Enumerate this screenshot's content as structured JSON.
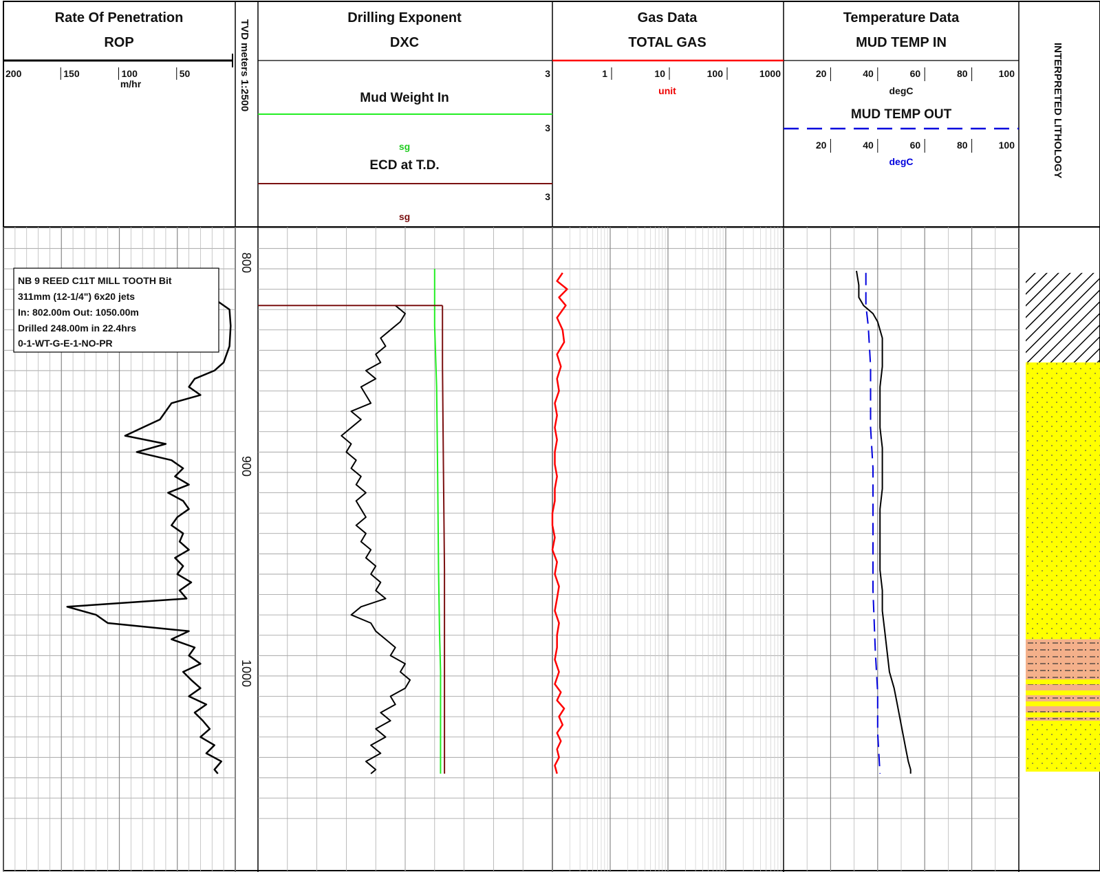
{
  "header": {
    "rop": {
      "title": "Rate Of Penetration",
      "subtitle": "ROP",
      "unit": "m/hr",
      "ticks": [
        "200",
        "150",
        "100",
        "50"
      ]
    },
    "depth": {
      "label": "TVD meters 1:2500"
    },
    "dxc": {
      "title": "Drilling Exponent",
      "subtitle": "DXC",
      "tick": "3",
      "mw_label": "Mud Weight In",
      "mw_tick": "3",
      "mw_unit": "sg",
      "ecd_label": "ECD at T.D.",
      "ecd_tick": "3",
      "ecd_unit": "sg"
    },
    "gas": {
      "title": "Gas Data",
      "subtitle": "TOTAL GAS",
      "ticks": [
        "1",
        "10",
        "100",
        "1000"
      ],
      "unit": "unit"
    },
    "temp": {
      "title": "Temperature Data",
      "subtitle": "MUD TEMP IN",
      "ticks": [
        "20",
        "40",
        "60",
        "80",
        "100"
      ],
      "unit_in": "degC",
      "out_label": "MUD TEMP OUT",
      "ticks_out": [
        "20",
        "40",
        "60",
        "80",
        "100"
      ],
      "unit_out": "degC"
    },
    "litho": {
      "label": "INTERPRETED LITHOLOGY"
    }
  },
  "bit_info": [
    "NB 9 REED C11T MILL TOOTH Bit",
    "311mm (12-1/4\") 6x20 jets",
    "In: 802.00m  Out: 1050.00m",
    "Drilled 248.00m in 22.4hrs",
    "0-1-WT-G-E-1-NO-PR"
  ],
  "colors": {
    "rop": "#000000",
    "dxc": "#000000",
    "mud_weight": "#22ee22",
    "ecd": "#7a1010",
    "gas": "#ff0000",
    "temp_in": "#000000",
    "temp_out": "#0000dd",
    "sand": "#ffff00",
    "siltstone": "#f4b08a"
  },
  "chart_data": {
    "type": "line",
    "depth_unit": "m",
    "depth_range": [
      782,
      1072
    ],
    "depth_labels": [
      800,
      900,
      1000
    ],
    "tracks": [
      {
        "name": "ROP",
        "unit": "m/hr",
        "scale": "linear-reversed",
        "range": [
          200,
          0
        ],
        "points": [
          [
            802,
            115
          ],
          [
            805,
            80
          ],
          [
            808,
            72
          ],
          [
            812,
            60
          ],
          [
            816,
            20
          ],
          [
            822,
            5
          ],
          [
            830,
            4
          ],
          [
            840,
            5
          ],
          [
            848,
            10
          ],
          [
            852,
            18
          ],
          [
            856,
            35
          ],
          [
            860,
            40
          ],
          [
            864,
            30
          ],
          [
            868,
            55
          ],
          [
            872,
            60
          ],
          [
            876,
            65
          ],
          [
            880,
            80
          ],
          [
            884,
            95
          ],
          [
            888,
            60
          ],
          [
            892,
            85
          ],
          [
            896,
            55
          ],
          [
            900,
            45
          ],
          [
            904,
            52
          ],
          [
            908,
            40
          ],
          [
            912,
            58
          ],
          [
            916,
            45
          ],
          [
            920,
            40
          ],
          [
            924,
            50
          ],
          [
            928,
            55
          ],
          [
            932,
            45
          ],
          [
            936,
            48
          ],
          [
            940,
            40
          ],
          [
            944,
            52
          ],
          [
            948,
            45
          ],
          [
            952,
            50
          ],
          [
            956,
            38
          ],
          [
            960,
            48
          ],
          [
            964,
            42
          ],
          [
            968,
            145
          ],
          [
            972,
            120
          ],
          [
            976,
            110
          ],
          [
            980,
            40
          ],
          [
            984,
            55
          ],
          [
            988,
            35
          ],
          [
            992,
            40
          ],
          [
            996,
            30
          ],
          [
            1000,
            45
          ],
          [
            1004,
            38
          ],
          [
            1008,
            30
          ],
          [
            1012,
            40
          ],
          [
            1016,
            25
          ],
          [
            1020,
            35
          ],
          [
            1024,
            28
          ],
          [
            1028,
            22
          ],
          [
            1032,
            30
          ],
          [
            1036,
            18
          ],
          [
            1040,
            25
          ],
          [
            1044,
            12
          ],
          [
            1048,
            18
          ],
          [
            1050,
            15
          ]
        ]
      },
      {
        "name": "DXC",
        "unit": "",
        "scale": "linear",
        "range": [
          0,
          3
        ],
        "points": [
          [
            820,
            1.4
          ],
          [
            824,
            1.5
          ],
          [
            828,
            1.45
          ],
          [
            832,
            1.35
          ],
          [
            836,
            1.25
          ],
          [
            840,
            1.3
          ],
          [
            844,
            1.2
          ],
          [
            848,
            1.25
          ],
          [
            852,
            1.1
          ],
          [
            856,
            1.2
          ],
          [
            860,
            1.05
          ],
          [
            864,
            1.1
          ],
          [
            868,
            1.15
          ],
          [
            872,
            0.95
          ],
          [
            876,
            1.05
          ],
          [
            880,
            0.95
          ],
          [
            884,
            0.85
          ],
          [
            888,
            0.95
          ],
          [
            892,
            0.9
          ],
          [
            896,
            1.0
          ],
          [
            900,
            0.95
          ],
          [
            904,
            1.05
          ],
          [
            908,
            1.0
          ],
          [
            912,
            1.1
          ],
          [
            916,
            1.0
          ],
          [
            920,
            1.05
          ],
          [
            924,
            1.1
          ],
          [
            928,
            1.0
          ],
          [
            932,
            1.1
          ],
          [
            936,
            1.05
          ],
          [
            940,
            1.15
          ],
          [
            944,
            1.1
          ],
          [
            948,
            1.2
          ],
          [
            952,
            1.15
          ],
          [
            956,
            1.25
          ],
          [
            960,
            1.2
          ],
          [
            964,
            1.3
          ],
          [
            968,
            1.05
          ],
          [
            972,
            0.95
          ],
          [
            976,
            1.15
          ],
          [
            980,
            1.2
          ],
          [
            984,
            1.3
          ],
          [
            988,
            1.4
          ],
          [
            992,
            1.35
          ],
          [
            996,
            1.5
          ],
          [
            1000,
            1.45
          ],
          [
            1004,
            1.55
          ],
          [
            1008,
            1.5
          ],
          [
            1012,
            1.35
          ],
          [
            1016,
            1.4
          ],
          [
            1020,
            1.25
          ],
          [
            1024,
            1.35
          ],
          [
            1028,
            1.2
          ],
          [
            1032,
            1.3
          ],
          [
            1036,
            1.15
          ],
          [
            1040,
            1.25
          ],
          [
            1044,
            1.1
          ],
          [
            1048,
            1.2
          ],
          [
            1050,
            1.15
          ]
        ]
      },
      {
        "name": "Mud Weight In",
        "unit": "sg",
        "scale": "linear",
        "range": [
          0,
          3
        ],
        "points": [
          [
            802,
            1.8
          ],
          [
            820,
            1.8
          ],
          [
            830,
            1.8
          ],
          [
            860,
            1.82
          ],
          [
            900,
            1.83
          ],
          [
            950,
            1.84
          ],
          [
            980,
            1.85
          ],
          [
            1000,
            1.86
          ],
          [
            1050,
            1.86
          ]
        ]
      },
      {
        "name": "ECD at T.D.",
        "unit": "sg",
        "scale": "linear",
        "range": [
          0,
          3
        ],
        "points": [
          [
            820,
            1.88
          ],
          [
            850,
            1.88
          ],
          [
            900,
            1.89
          ],
          [
            950,
            1.9
          ],
          [
            1000,
            1.9
          ],
          [
            1050,
            1.9
          ]
        ]
      },
      {
        "name": "TOTAL GAS",
        "unit": "unit",
        "scale": "log",
        "range": [
          0.1,
          1000
        ],
        "points": [
          [
            804,
            0.15
          ],
          [
            808,
            0.12
          ],
          [
            812,
            0.18
          ],
          [
            816,
            0.13
          ],
          [
            820,
            0.17
          ],
          [
            826,
            0.12
          ],
          [
            832,
            0.15
          ],
          [
            838,
            0.16
          ],
          [
            844,
            0.12
          ],
          [
            850,
            0.14
          ],
          [
            856,
            0.12
          ],
          [
            862,
            0.13
          ],
          [
            868,
            0.11
          ],
          [
            874,
            0.12
          ],
          [
            880,
            0.11
          ],
          [
            886,
            0.12
          ],
          [
            892,
            0.11
          ],
          [
            898,
            0.11
          ],
          [
            904,
            0.12
          ],
          [
            910,
            0.11
          ],
          [
            916,
            0.11
          ],
          [
            922,
            0.1
          ],
          [
            928,
            0.1
          ],
          [
            934,
            0.11
          ],
          [
            940,
            0.1
          ],
          [
            946,
            0.12
          ],
          [
            952,
            0.11
          ],
          [
            958,
            0.13
          ],
          [
            964,
            0.12
          ],
          [
            970,
            0.11
          ],
          [
            976,
            0.13
          ],
          [
            982,
            0.12
          ],
          [
            988,
            0.12
          ],
          [
            994,
            0.11
          ],
          [
            1000,
            0.13
          ],
          [
            1006,
            0.11
          ],
          [
            1010,
            0.14
          ],
          [
            1014,
            0.12
          ],
          [
            1018,
            0.16
          ],
          [
            1022,
            0.13
          ],
          [
            1026,
            0.15
          ],
          [
            1030,
            0.12
          ],
          [
            1034,
            0.14
          ],
          [
            1038,
            0.12
          ],
          [
            1042,
            0.13
          ],
          [
            1046,
            0.11
          ],
          [
            1050,
            0.12
          ]
        ]
      },
      {
        "name": "MUD TEMP IN",
        "unit": "degC",
        "scale": "linear",
        "range": [
          0,
          100
        ],
        "points": [
          [
            803,
            31
          ],
          [
            810,
            32
          ],
          [
            816,
            32
          ],
          [
            820,
            34
          ],
          [
            824,
            38
          ],
          [
            828,
            40
          ],
          [
            832,
            41
          ],
          [
            836,
            42
          ],
          [
            840,
            42
          ],
          [
            850,
            42
          ],
          [
            860,
            41
          ],
          [
            870,
            41
          ],
          [
            880,
            41
          ],
          [
            890,
            42
          ],
          [
            900,
            42
          ],
          [
            910,
            42
          ],
          [
            920,
            41
          ],
          [
            930,
            41
          ],
          [
            940,
            41
          ],
          [
            950,
            41
          ],
          [
            960,
            42
          ],
          [
            970,
            42
          ],
          [
            980,
            43
          ],
          [
            990,
            44
          ],
          [
            1000,
            45
          ],
          [
            1004,
            46
          ],
          [
            1008,
            47
          ],
          [
            1014,
            48
          ],
          [
            1020,
            49
          ],
          [
            1026,
            50
          ],
          [
            1032,
            51
          ],
          [
            1038,
            52
          ],
          [
            1044,
            53
          ],
          [
            1048,
            54
          ],
          [
            1050,
            54
          ]
        ]
      },
      {
        "name": "MUD TEMP OUT",
        "unit": "degC",
        "scale": "linear",
        "range": [
          0,
          100
        ],
        "points": [
          [
            804,
            35
          ],
          [
            810,
            35
          ],
          [
            820,
            35
          ],
          [
            830,
            36
          ],
          [
            850,
            37
          ],
          [
            880,
            37
          ],
          [
            900,
            38
          ],
          [
            930,
            38
          ],
          [
            960,
            38
          ],
          [
            990,
            39
          ],
          [
            1010,
            40
          ],
          [
            1030,
            40
          ],
          [
            1050,
            41
          ]
        ]
      }
    ],
    "lithology": [
      {
        "top": 804,
        "base": 848,
        "type": "hatch"
      },
      {
        "top": 848,
        "base": 984,
        "type": "sand"
      },
      {
        "top": 984,
        "base": 1001,
        "type": "siltstone"
      },
      {
        "top": 1001,
        "base": 1024,
        "type": "siltstone-interbedded"
      },
      {
        "top": 1024,
        "base": 1049,
        "type": "sand"
      }
    ]
  }
}
